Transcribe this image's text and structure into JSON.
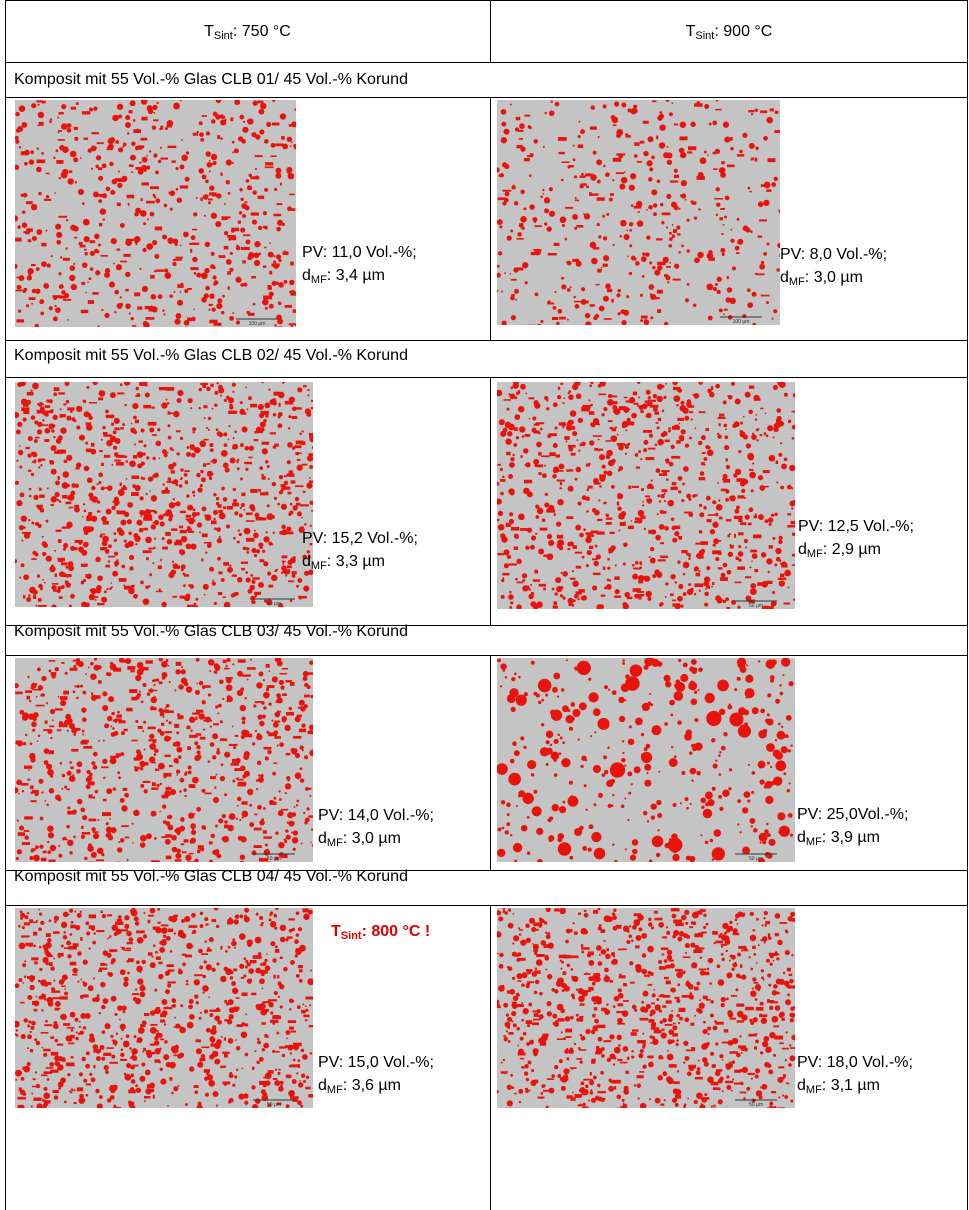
{
  "header": {
    "columns": [
      {
        "symbol": "T",
        "subscript": "Sint",
        "text": ": 750 °C"
      },
      {
        "symbol": "T",
        "subscript": "Sint",
        "text": ": 900 °C"
      }
    ]
  },
  "groups": [
    {
      "title": "Komposit mit 55 Vol.-% Glas CLB 01/ 45 Vol.-% Korund",
      "cells": [
        {
          "pv": "PV: 11,0 Vol.-%;",
          "d_symbol": "d",
          "d_subscript": "MF",
          "d_text": ": 3,4 µm",
          "scale": "100 µm"
        },
        {
          "pv": "PV: 8,0 Vol.-%;",
          "d_symbol": "d",
          "d_subscript": "MF",
          "d_text": ": 3,0 µm",
          "scale": "100 µm"
        }
      ]
    },
    {
      "title": "Komposit mit 55 Vol.-% Glas CLB 02/ 45 Vol.-% Korund",
      "cells": [
        {
          "pv": "PV: 15,2 Vol.-%;",
          "d_symbol": "d",
          "d_subscript": "MF",
          "d_text": ": 3,3 µm",
          "scale": "50 µm"
        },
        {
          "pv": "PV: 12,5 Vol.-%;",
          "d_symbol": "d",
          "d_subscript": "MF",
          "d_text": ": 2,9 µm",
          "scale": "50 µm"
        }
      ]
    },
    {
      "title": "Komposit mit 55 Vol.-% Glas CLB 03/ 45 Vol.-% Korund",
      "cells": [
        {
          "pv": "PV: 14,0 Vol.-%;",
          "d_symbol": "d",
          "d_subscript": "MF",
          "d_text": ": 3,0 µm",
          "scale": "50 µm"
        },
        {
          "pv": "PV: 25,0Vol.-%;",
          "d_symbol": "d",
          "d_subscript": "MF",
          "d_text": ": 3,9 µm",
          "scale": "50 µm"
        }
      ]
    },
    {
      "title": "Komposit mit 55 Vol.-% Glas CLB 04/ 45 Vol.-% Korund",
      "note": {
        "symbol": "T",
        "subscript": "Sint",
        "text": ": 800 °C !"
      },
      "cells": [
        {
          "pv": "PV: 15,0 Vol.-%;",
          "d_symbol": "d",
          "d_subscript": "MF",
          "d_text": ": 3,6 µm",
          "scale": "50 µm"
        },
        {
          "pv": "PV: 18,0 Vol.-%;",
          "d_symbol": "d",
          "d_subscript": "MF",
          "d_text": ": 3,1 µm",
          "scale": "50 µm"
        }
      ]
    }
  ]
}
